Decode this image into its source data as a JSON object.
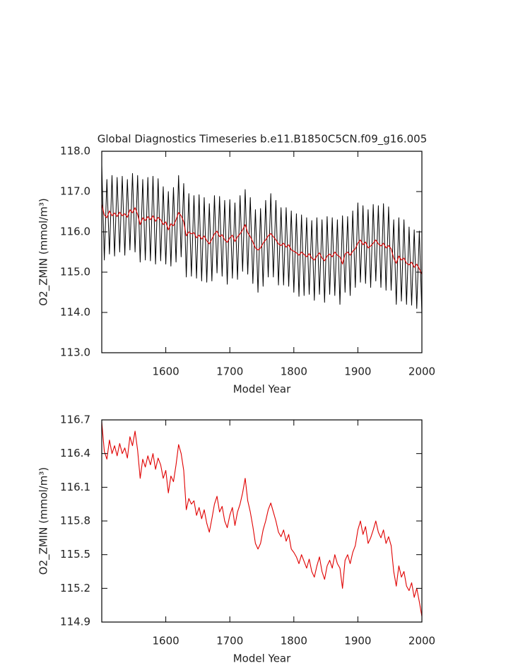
{
  "chart_data": [
    {
      "type": "line",
      "title": "Global Diagnostics Timeseries b.e11.B1850C5CN.f09_g16.005",
      "xlabel": "Model Year",
      "ylabel": "O2_ZMIN (mmol/m³)",
      "x": [
        1500,
        1504,
        1508,
        1512,
        1516,
        1520,
        1524,
        1528,
        1532,
        1536,
        1540,
        1544,
        1548,
        1552,
        1556,
        1560,
        1564,
        1568,
        1572,
        1576,
        1580,
        1584,
        1588,
        1592,
        1596,
        1600,
        1604,
        1608,
        1612,
        1616,
        1620,
        1624,
        1628,
        1632,
        1636,
        1640,
        1644,
        1648,
        1652,
        1656,
        1660,
        1664,
        1668,
        1672,
        1676,
        1680,
        1684,
        1688,
        1692,
        1696,
        1700,
        1704,
        1708,
        1712,
        1716,
        1720,
        1724,
        1728,
        1732,
        1736,
        1740,
        1744,
        1748,
        1752,
        1756,
        1760,
        1764,
        1768,
        1772,
        1776,
        1780,
        1784,
        1788,
        1792,
        1796,
        1800,
        1804,
        1808,
        1812,
        1816,
        1820,
        1824,
        1828,
        1832,
        1836,
        1840,
        1844,
        1848,
        1852,
        1856,
        1860,
        1864,
        1868,
        1872,
        1876,
        1880,
        1884,
        1888,
        1892,
        1896,
        1900,
        1904,
        1908,
        1912,
        1916,
        1920,
        1924,
        1928,
        1932,
        1936,
        1940,
        1944,
        1948,
        1952,
        1956,
        1960,
        1964,
        1968,
        1972,
        1976,
        1980,
        1984,
        1988,
        1992,
        1996,
        2000
      ],
      "series": [
        {
          "color": "#000000",
          "values": [
            117.65,
            115.3,
            117.3,
            115.45,
            117.4,
            115.4,
            117.35,
            115.5,
            117.38,
            115.42,
            117.3,
            115.55,
            117.45,
            115.5,
            117.4,
            115.25,
            117.3,
            115.3,
            117.35,
            115.28,
            117.38,
            115.2,
            117.32,
            115.28,
            117.12,
            115.2,
            117.0,
            115.15,
            117.1,
            115.25,
            117.4,
            115.38,
            117.2,
            114.88,
            116.95,
            114.9,
            116.9,
            114.85,
            116.92,
            114.78,
            116.85,
            114.75,
            116.7,
            114.78,
            116.9,
            114.98,
            116.88,
            114.9,
            116.78,
            114.7,
            116.8,
            114.85,
            116.72,
            114.82,
            116.9,
            115.02,
            117.05,
            114.95,
            116.85,
            114.72,
            116.55,
            114.5,
            116.58,
            114.65,
            116.78,
            114.88,
            116.95,
            114.88,
            116.78,
            114.68,
            116.6,
            114.68,
            116.6,
            114.65,
            116.52,
            114.5,
            116.45,
            114.4,
            116.42,
            114.42,
            116.35,
            114.45,
            116.28,
            114.3,
            116.35,
            114.45,
            116.3,
            114.25,
            116.38,
            114.45,
            116.35,
            114.42,
            116.3,
            114.2,
            116.4,
            114.5,
            116.38,
            114.42,
            116.52,
            114.62,
            116.72,
            114.75,
            116.65,
            114.72,
            116.55,
            114.62,
            116.68,
            114.78,
            116.65,
            114.62,
            116.7,
            114.55,
            116.62,
            114.55,
            116.3,
            114.2,
            116.35,
            114.28,
            116.3,
            114.2,
            116.12,
            114.18,
            116.05,
            114.1,
            116.02,
            113.95
          ]
        },
        {
          "color": "#e00000",
          "values": [
            116.68,
            116.42,
            116.35,
            116.52,
            116.4,
            116.47,
            116.38,
            116.49,
            116.4,
            116.45,
            116.36,
            116.55,
            116.47,
            116.6,
            116.43,
            116.18,
            116.35,
            116.28,
            116.38,
            116.3,
            116.4,
            116.26,
            116.36,
            116.3,
            116.18,
            116.25,
            116.05,
            116.2,
            116.15,
            116.3,
            116.48,
            116.4,
            116.25,
            115.9,
            116.0,
            115.95,
            115.98,
            115.85,
            115.92,
            115.82,
            115.9,
            115.78,
            115.7,
            115.82,
            115.95,
            116.02,
            115.88,
            115.93,
            115.8,
            115.74,
            115.85,
            115.92,
            115.76,
            115.88,
            115.95,
            116.05,
            116.18,
            115.98,
            115.88,
            115.75,
            115.6,
            115.55,
            115.6,
            115.72,
            115.8,
            115.9,
            115.96,
            115.88,
            115.8,
            115.7,
            115.66,
            115.72,
            115.62,
            115.68,
            115.55,
            115.52,
            115.48,
            115.42,
            115.5,
            115.44,
            115.38,
            115.46,
            115.35,
            115.3,
            115.4,
            115.48,
            115.35,
            115.28,
            115.4,
            115.45,
            115.38,
            115.5,
            115.42,
            115.38,
            115.2,
            115.45,
            115.5,
            115.42,
            115.52,
            115.58,
            115.72,
            115.8,
            115.68,
            115.75,
            115.6,
            115.65,
            115.72,
            115.8,
            115.7,
            115.65,
            115.72,
            115.6,
            115.66,
            115.58,
            115.35,
            115.22,
            115.4,
            115.3,
            115.35,
            115.22,
            115.18,
            115.25,
            115.12,
            115.2,
            115.08,
            114.95
          ]
        }
      ],
      "xlim": [
        1500,
        2000
      ],
      "xticks": [
        1600,
        1700,
        1800,
        1900,
        2000
      ],
      "ylim": [
        113,
        118
      ],
      "yticks": [
        {
          "value": 113,
          "label": "113.0"
        },
        {
          "value": 114,
          "label": "114.0"
        },
        {
          "value": 115,
          "label": "115.0"
        },
        {
          "value": 116,
          "label": "116.0"
        },
        {
          "value": 117,
          "label": "117.0"
        },
        {
          "value": 118,
          "label": "118.0"
        }
      ]
    },
    {
      "type": "line",
      "xlabel": "Model Year",
      "ylabel": "O2_ZMIN (mmol/m³)",
      "x": [
        1500,
        1504,
        1508,
        1512,
        1516,
        1520,
        1524,
        1528,
        1532,
        1536,
        1540,
        1544,
        1548,
        1552,
        1556,
        1560,
        1564,
        1568,
        1572,
        1576,
        1580,
        1584,
        1588,
        1592,
        1596,
        1600,
        1604,
        1608,
        1612,
        1616,
        1620,
        1624,
        1628,
        1632,
        1636,
        1640,
        1644,
        1648,
        1652,
        1656,
        1660,
        1664,
        1668,
        1672,
        1676,
        1680,
        1684,
        1688,
        1692,
        1696,
        1700,
        1704,
        1708,
        1712,
        1716,
        1720,
        1724,
        1728,
        1732,
        1736,
        1740,
        1744,
        1748,
        1752,
        1756,
        1760,
        1764,
        1768,
        1772,
        1776,
        1780,
        1784,
        1788,
        1792,
        1796,
        1800,
        1804,
        1808,
        1812,
        1816,
        1820,
        1824,
        1828,
        1832,
        1836,
        1840,
        1844,
        1848,
        1852,
        1856,
        1860,
        1864,
        1868,
        1872,
        1876,
        1880,
        1884,
        1888,
        1892,
        1896,
        1900,
        1904,
        1908,
        1912,
        1916,
        1920,
        1924,
        1928,
        1932,
        1936,
        1940,
        1944,
        1948,
        1952,
        1956,
        1960,
        1964,
        1968,
        1972,
        1976,
        1980,
        1984,
        1988,
        1992,
        1996,
        2000
      ],
      "series": [
        {
          "color": "#e00000",
          "values": [
            116.68,
            116.42,
            116.35,
            116.52,
            116.4,
            116.47,
            116.38,
            116.49,
            116.4,
            116.45,
            116.36,
            116.55,
            116.47,
            116.6,
            116.43,
            116.18,
            116.35,
            116.28,
            116.38,
            116.3,
            116.4,
            116.26,
            116.36,
            116.3,
            116.18,
            116.25,
            116.05,
            116.2,
            116.15,
            116.3,
            116.48,
            116.4,
            116.25,
            115.9,
            116.0,
            115.95,
            115.98,
            115.85,
            115.92,
            115.82,
            115.9,
            115.78,
            115.7,
            115.82,
            115.95,
            116.02,
            115.88,
            115.93,
            115.8,
            115.74,
            115.85,
            115.92,
            115.76,
            115.88,
            115.95,
            116.05,
            116.18,
            115.98,
            115.88,
            115.75,
            115.6,
            115.55,
            115.6,
            115.72,
            115.8,
            115.9,
            115.96,
            115.88,
            115.8,
            115.7,
            115.66,
            115.72,
            115.62,
            115.68,
            115.55,
            115.52,
            115.48,
            115.42,
            115.5,
            115.44,
            115.38,
            115.46,
            115.35,
            115.3,
            115.4,
            115.48,
            115.35,
            115.28,
            115.4,
            115.45,
            115.38,
            115.5,
            115.42,
            115.38,
            115.2,
            115.45,
            115.5,
            115.42,
            115.52,
            115.58,
            115.72,
            115.8,
            115.68,
            115.75,
            115.6,
            115.65,
            115.72,
            115.8,
            115.7,
            115.65,
            115.72,
            115.6,
            115.66,
            115.58,
            115.35,
            115.22,
            115.4,
            115.3,
            115.35,
            115.22,
            115.18,
            115.25,
            115.12,
            115.2,
            115.08,
            114.95
          ]
        }
      ],
      "xlim": [
        1500,
        2000
      ],
      "xticks": [
        1600,
        1700,
        1800,
        1900,
        2000
      ],
      "ylim": [
        114.9,
        116.7
      ],
      "yticks": [
        114.9,
        115.2,
        115.5,
        115.8,
        116.1,
        116.4,
        116.7
      ]
    }
  ]
}
